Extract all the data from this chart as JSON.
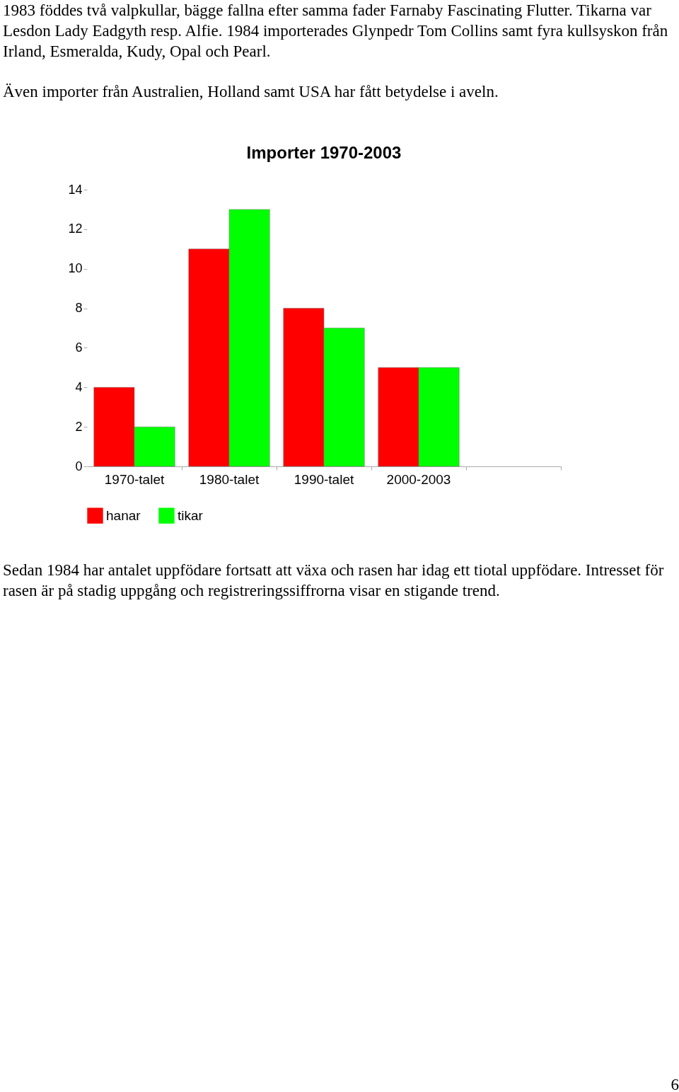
{
  "chart_data": {
    "type": "bar",
    "title": "Importer 1970-2003",
    "categories": [
      "1970-talet",
      "1980-talet",
      "1990-talet",
      "2000-2003",
      null
    ],
    "series": [
      {
        "name": "hanar",
        "color": "#ff0000",
        "values": [
          4,
          11,
          8,
          5,
          null
        ]
      },
      {
        "name": "tikar",
        "color": "#00ff00",
        "values": [
          2,
          13,
          7,
          5,
          null
        ]
      }
    ],
    "ylim": [
      0,
      14
    ],
    "yticks": [
      0,
      2,
      4,
      6,
      8,
      10,
      12,
      14
    ],
    "legend": "bottom",
    "annotations": [
      "1983 föddes två valpkullar, bägge fallna efter samma fader Farnaby Fascinating Flutter. Tikarna var Lesdon Lady Eadgyth resp. Alfie. 1984 importerades Glynpedr Tom Collins samt fyra kullsyskon från Irland, Esmeralda, Kudy, Opal och Pearl.",
      "Även importer från Australien, Holland samt USA har fått betydelse i aveln.",
      "Sedan 1984 har antalet uppfödare fortsatt att växa och rasen har idag ett tiotal uppfödare. Intresset för rasen är på stadig uppgång och registreringssiffrorna visar en stigande trend.",
      "6"
    ]
  }
}
